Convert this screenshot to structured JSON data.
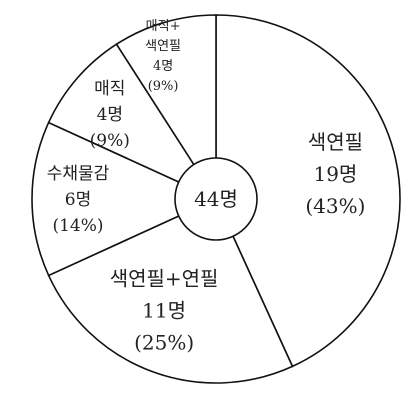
{
  "chart_data": {
    "type": "pie",
    "title": "",
    "center_label": "44명",
    "total": 44,
    "start": "12 o'clock",
    "direction": "clockwise",
    "slices": [
      {
        "label_lines": [
          "색연필"
        ],
        "count_text": "19명",
        "pct_text": "(43%)",
        "value": 19,
        "percent": 43
      },
      {
        "label_lines": [
          "색연필+연필"
        ],
        "count_text": "11명",
        "pct_text": "(25%)",
        "value": 11,
        "percent": 25
      },
      {
        "label_lines": [
          "수채물감"
        ],
        "count_text": "6명",
        "pct_text": "(14%)",
        "value": 6,
        "percent": 14
      },
      {
        "label_lines": [
          "매직"
        ],
        "count_text": "4명",
        "pct_text": "(9%)",
        "value": 4,
        "percent": 9
      },
      {
        "label_lines": [
          "매직+",
          "색연필"
        ],
        "count_text": "4명",
        "pct_text": "(9%)",
        "value": 4,
        "percent": 9
      }
    ]
  }
}
